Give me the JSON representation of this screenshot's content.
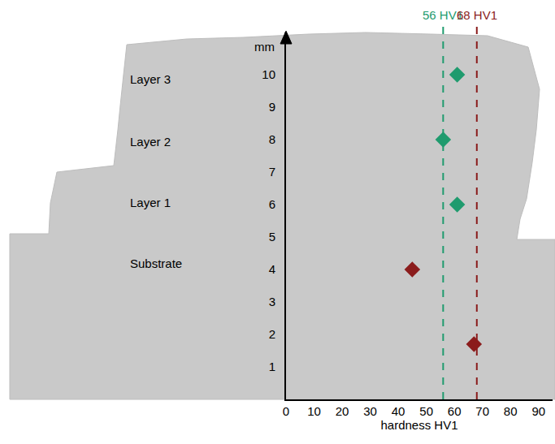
{
  "chart_data": {
    "type": "scatter",
    "x_label": "hardness HV1",
    "y_label": "mm",
    "xlim": [
      0,
      95
    ],
    "xticks": [
      0,
      10,
      20,
      30,
      40,
      50,
      60,
      70,
      80,
      90
    ],
    "ylim": [
      0,
      11.3
    ],
    "yticks": [
      1,
      2,
      3,
      4,
      5,
      6,
      7,
      8,
      9,
      10
    ],
    "grid": false,
    "marker": "diamond",
    "series": [
      {
        "color": "#1f9b6e",
        "x": [
          61,
          56,
          61
        ],
        "y": [
          10,
          8,
          6
        ]
      },
      {
        "color": "#8b1c1c",
        "x": [
          45,
          67
        ],
        "y": [
          4,
          1.7
        ]
      }
    ],
    "reference_lines": [
      {
        "value": 56,
        "label": "56 HV1",
        "color": "#1f9b6e",
        "line_style": "dash"
      },
      {
        "value": 68,
        "label": "68 HV1",
        "color": "#8b1c1c",
        "line_style": "dash"
      }
    ],
    "region_labels": [
      "Layer 3",
      "Layer 2",
      "Layer 1",
      "Substrate"
    ]
  }
}
